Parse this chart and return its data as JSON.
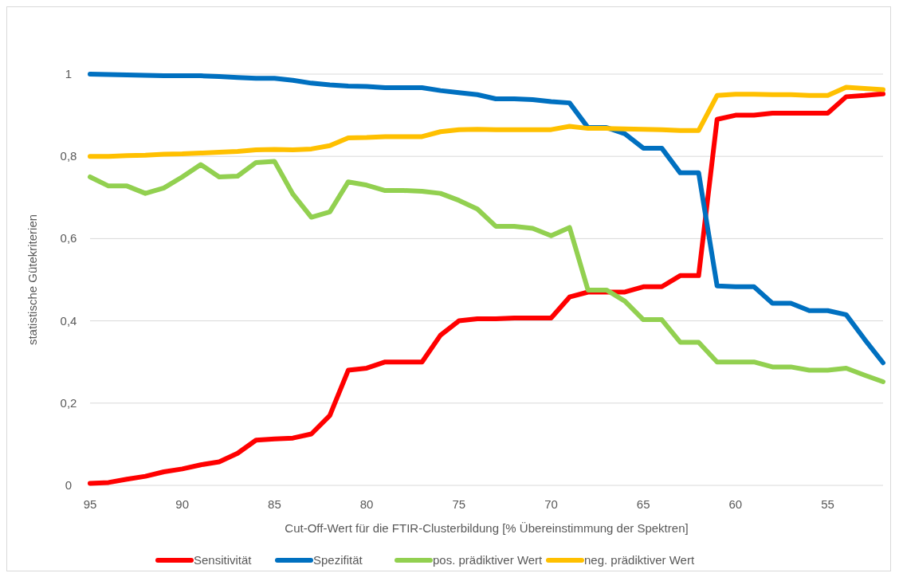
{
  "chart_data": {
    "type": "line",
    "xlabel": "Cut-Off-Wert für die FTIR-Clusterbildung [% Übereinstimmung der Spektren]",
    "ylabel": "statistische Gütekriterien",
    "x": [
      95,
      94,
      93,
      92,
      91,
      90,
      89,
      88,
      87,
      86,
      85,
      84,
      83,
      82,
      81,
      80,
      79,
      78,
      77,
      76,
      75,
      74,
      73,
      72,
      71,
      70,
      69,
      68,
      67,
      66,
      65,
      64,
      63,
      62,
      61,
      60,
      59,
      58,
      57,
      56,
      55,
      54,
      53,
      52
    ],
    "xlim": [
      95,
      52
    ],
    "xticks": [
      95,
      90,
      85,
      80,
      75,
      70,
      65,
      60,
      55
    ],
    "ylim": [
      0,
      1
    ],
    "yticks": [
      {
        "value": 0,
        "label": "0"
      },
      {
        "value": 0.2,
        "label": "0,2"
      },
      {
        "value": 0.4,
        "label": "0,4"
      },
      {
        "value": 0.6,
        "label": "0,6"
      },
      {
        "value": 0.8,
        "label": "0,8"
      },
      {
        "value": 1,
        "label": "1"
      }
    ],
    "grid": "y",
    "legend": "bottom",
    "line_style": "solid",
    "series": [
      {
        "name": "Sensitivität",
        "color": "#ff0000",
        "values": [
          0.005,
          0.007,
          0.015,
          0.022,
          0.033,
          0.04,
          0.05,
          0.057,
          0.078,
          0.11,
          0.113,
          0.115,
          0.125,
          0.17,
          0.28,
          0.285,
          0.3,
          0.3,
          0.3,
          0.365,
          0.4,
          0.405,
          0.405,
          0.407,
          0.407,
          0.407,
          0.458,
          0.47,
          0.47,
          0.47,
          0.483,
          0.483,
          0.51,
          0.51,
          0.89,
          0.9,
          0.9,
          0.905,
          0.905,
          0.905,
          0.905,
          0.945,
          0.948,
          0.952
        ]
      },
      {
        "name": "Spezifität",
        "color": "#0070c0",
        "values": [
          1,
          0.999,
          0.998,
          0.997,
          0.996,
          0.996,
          0.996,
          0.994,
          0.992,
          0.99,
          0.99,
          0.985,
          0.978,
          0.974,
          0.971,
          0.97,
          0.967,
          0.967,
          0.967,
          0.96,
          0.955,
          0.95,
          0.94,
          0.94,
          0.938,
          0.933,
          0.93,
          0.87,
          0.87,
          0.855,
          0.82,
          0.82,
          0.76,
          0.76,
          0.485,
          0.483,
          0.483,
          0.443,
          0.443,
          0.425,
          0.425,
          0.415,
          0.355,
          0.298
        ]
      },
      {
        "name": "pos. prädiktiver Wert",
        "color": "#92d050",
        "values": [
          0.75,
          0.728,
          0.728,
          0.71,
          0.723,
          0.75,
          0.78,
          0.75,
          0.752,
          0.785,
          0.788,
          0.708,
          0.652,
          0.665,
          0.738,
          0.73,
          0.717,
          0.717,
          0.715,
          0.71,
          0.693,
          0.672,
          0.63,
          0.63,
          0.625,
          0.607,
          0.627,
          0.475,
          0.475,
          0.448,
          0.403,
          0.403,
          0.348,
          0.348,
          0.3,
          0.3,
          0.3,
          0.288,
          0.288,
          0.28,
          0.28,
          0.285,
          0.268,
          0.252
        ]
      },
      {
        "name": "neg. prädiktiver Wert",
        "color": "#ffc000",
        "values": [
          0.8,
          0.8,
          0.802,
          0.803,
          0.805,
          0.806,
          0.808,
          0.81,
          0.812,
          0.816,
          0.817,
          0.816,
          0.818,
          0.826,
          0.845,
          0.846,
          0.848,
          0.848,
          0.848,
          0.86,
          0.865,
          0.866,
          0.865,
          0.865,
          0.865,
          0.865,
          0.873,
          0.868,
          0.868,
          0.867,
          0.866,
          0.865,
          0.863,
          0.863,
          0.948,
          0.951,
          0.951,
          0.95,
          0.95,
          0.948,
          0.948,
          0.968,
          0.965,
          0.962
        ]
      }
    ]
  }
}
